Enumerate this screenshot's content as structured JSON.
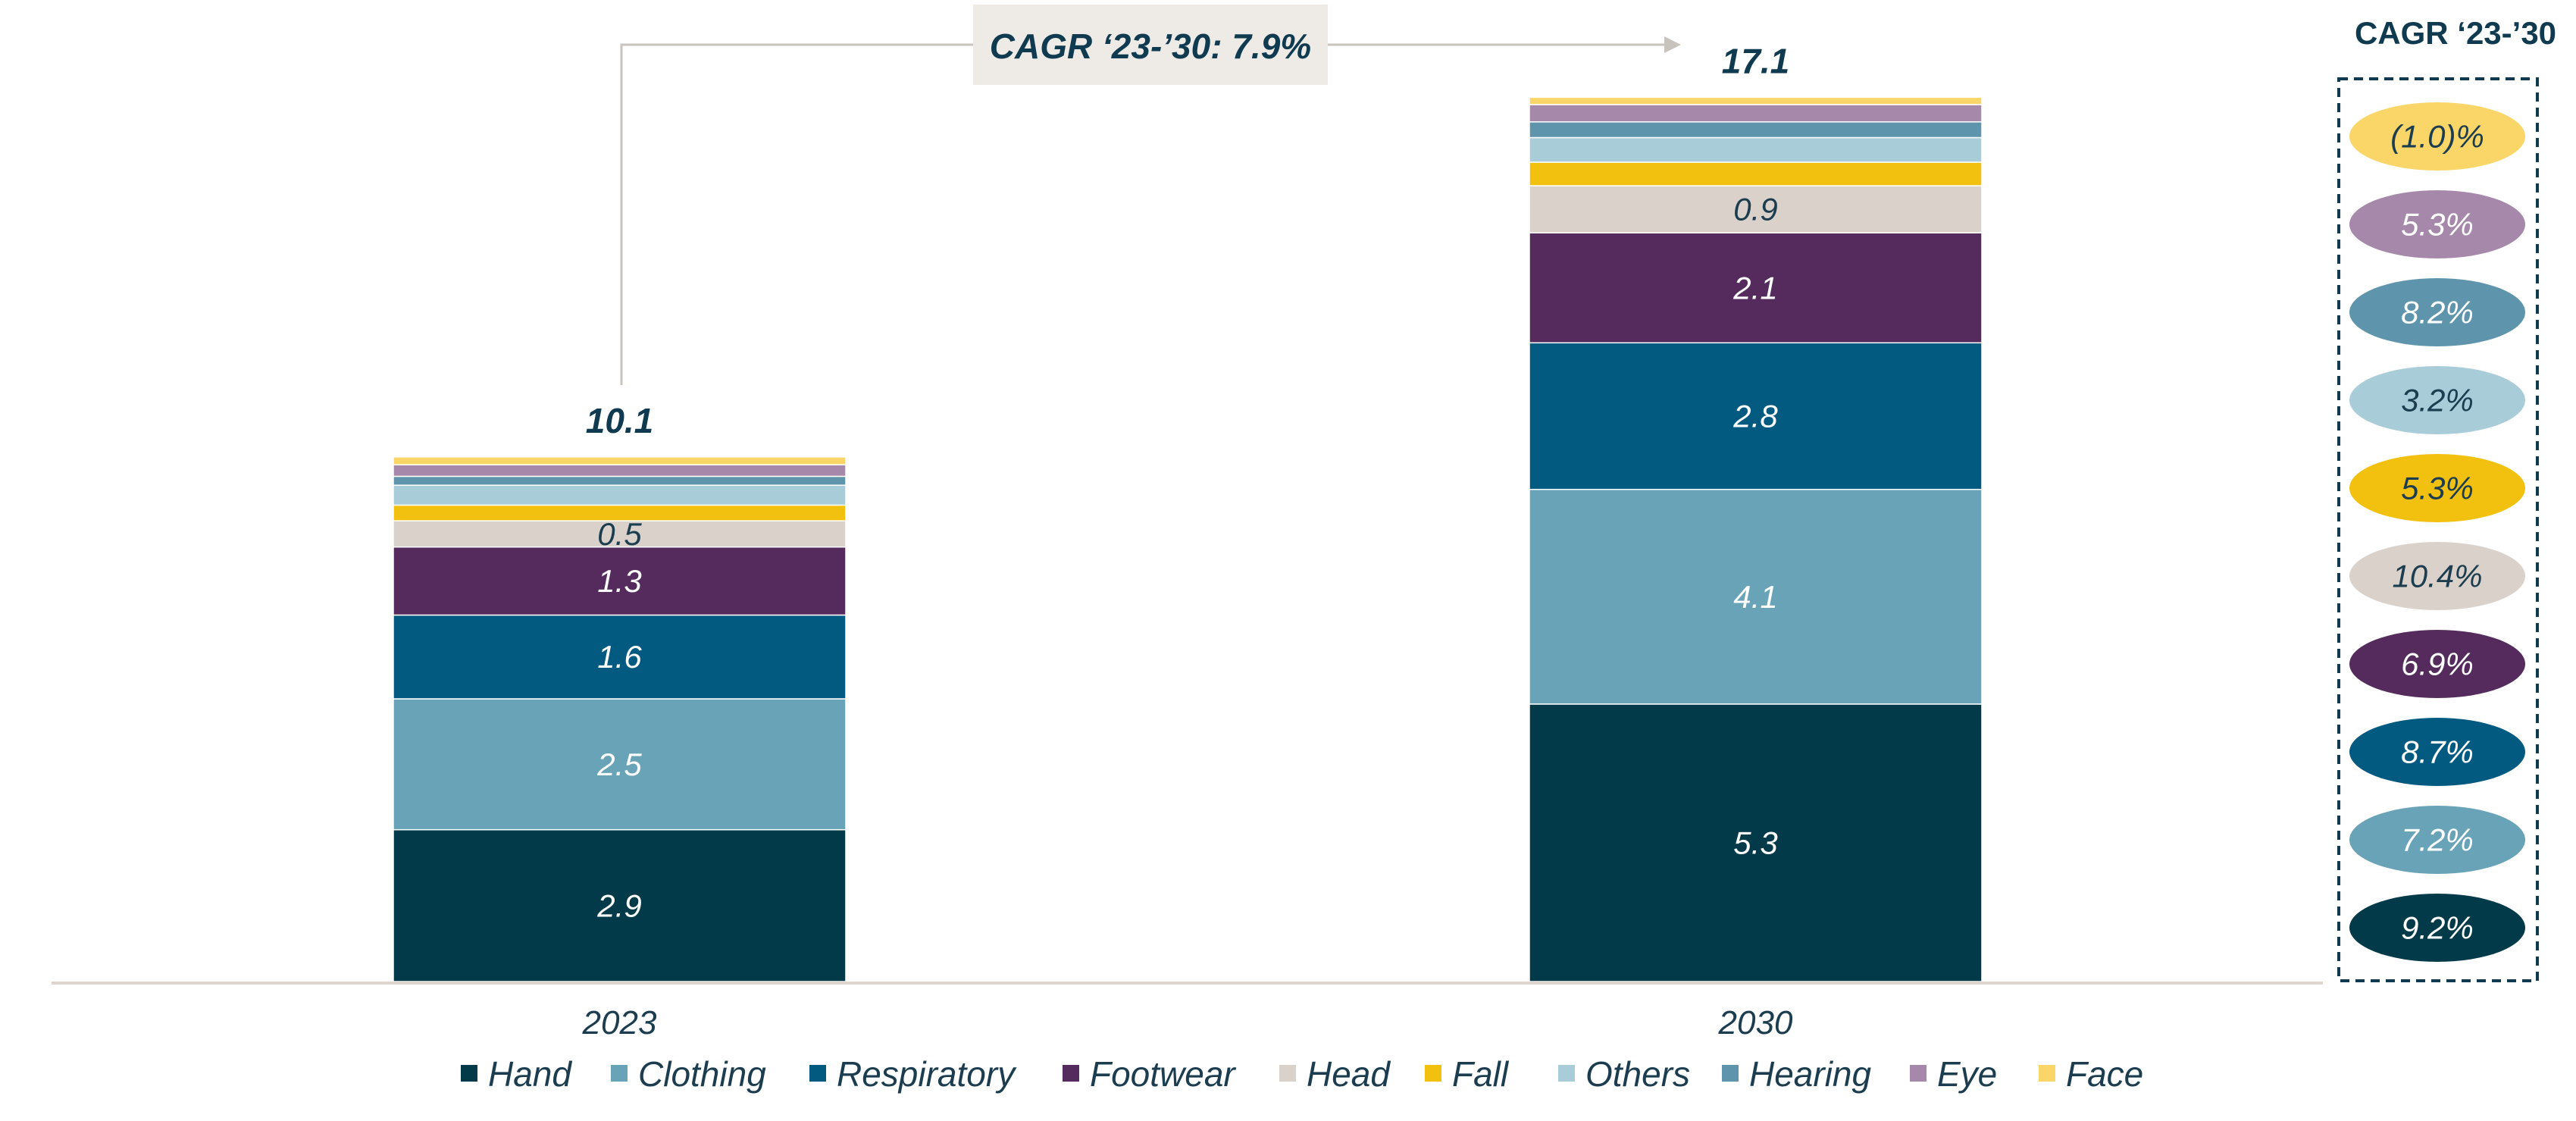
{
  "chart_data": {
    "type": "bar",
    "stacked": true,
    "categories": [
      "2023",
      "2030"
    ],
    "series": [
      {
        "name": "Hand",
        "color": "#033a4a",
        "values": [
          2.9,
          5.3
        ],
        "labels": [
          "2.9",
          "5.3"
        ],
        "cagr": "9.2%"
      },
      {
        "name": "Clothing",
        "color": "#68a3b8",
        "values": [
          2.5,
          4.1
        ],
        "labels": [
          "2.5",
          "4.1"
        ],
        "cagr": "7.2%"
      },
      {
        "name": "Respiratory",
        "color": "#035a80",
        "values": [
          1.6,
          2.8
        ],
        "labels": [
          "1.6",
          "2.8"
        ],
        "cagr": "8.7%"
      },
      {
        "name": "Footwear",
        "color": "#542b5c",
        "values": [
          1.3,
          2.1
        ],
        "labels": [
          "1.3",
          "2.1"
        ],
        "cagr": "6.9%"
      },
      {
        "name": "Head",
        "color": "#dbd1cb",
        "values": [
          0.5,
          0.9
        ],
        "labels": [
          "0.5",
          "0.9"
        ],
        "cagr": "10.4%"
      },
      {
        "name": "Fall",
        "color": "#f2c10f",
        "values": [
          0.3,
          0.45
        ],
        "labels": [
          "",
          ""
        ],
        "cagr": "5.3%"
      },
      {
        "name": "Others",
        "color": "#a9ccd9",
        "values": [
          0.38,
          0.47
        ],
        "labels": [
          "",
          ""
        ],
        "cagr": "3.2%"
      },
      {
        "name": "Hearing",
        "color": "#5e95ad",
        "values": [
          0.17,
          0.3
        ],
        "labels": [
          "",
          ""
        ],
        "cagr": "8.2%"
      },
      {
        "name": "Eye",
        "color": "#a688ab",
        "values": [
          0.22,
          0.33
        ],
        "labels": [
          "",
          ""
        ],
        "cagr": "5.3%"
      },
      {
        "name": "Face",
        "color": "#fad669",
        "values": [
          0.15,
          0.14
        ],
        "labels": [
          "",
          ""
        ],
        "cagr": "(1.0)%"
      }
    ],
    "totals": [
      "10.1",
      "17.1"
    ],
    "ylim": [
      0,
      17.3
    ],
    "growth_annotation": "CAGR ‘23-’30: 7.9%",
    "cagr_column_title": "CAGR ‘23-’30",
    "legend_position": "bottom",
    "title": "",
    "xlabel": "",
    "ylabel": ""
  },
  "colors": {
    "text_dark": "#0f3a4f",
    "axis": "#ded6cf",
    "annotation_bg": "#eeebe6",
    "dashed_border": "#0f3a4f"
  }
}
